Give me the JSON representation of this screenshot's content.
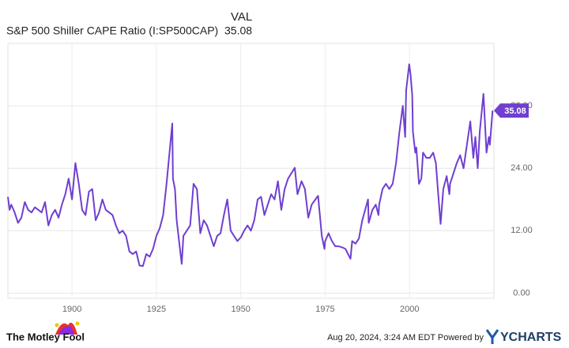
{
  "chart_data": {
    "type": "line",
    "value_header": "VAL",
    "credit": "The Motley Fool",
    "timestamp": "Aug 20, 2024, 3:24 AM EDT Powered by",
    "brand": "YCHARTS",
    "x": [
      1881,
      1881.5,
      1882,
      1883,
      1884,
      1885,
      1886,
      1887,
      1888,
      1889,
      1890,
      1891,
      1892,
      1893,
      1894,
      1895,
      1896,
      1897,
      1898,
      1899,
      1900,
      1901,
      1902,
      1903,
      1904,
      1905,
      1906,
      1907,
      1908,
      1909,
      1910,
      1911,
      1912,
      1913,
      1914,
      1915,
      1916,
      1917,
      1918,
      1919,
      1920,
      1921,
      1922,
      1923,
      1924,
      1925,
      1926,
      1927,
      1928,
      1929.7,
      1929.9,
      1930.5,
      1931,
      1932.5,
      1933,
      1934,
      1935,
      1936,
      1937,
      1938,
      1939,
      1940,
      1941,
      1942,
      1943,
      1944,
      1945,
      1946,
      1947,
      1948,
      1949,
      1950,
      1951,
      1952,
      1953,
      1954,
      1955,
      1956,
      1957,
      1958,
      1959,
      1960,
      1961,
      1962,
      1963,
      1964,
      1966,
      1966.8,
      1968,
      1969,
      1970,
      1971,
      1972.9,
      1974,
      1974.8,
      1975,
      1976,
      1977,
      1978,
      1979,
      1980,
      1981,
      1982.5,
      1983,
      1984,
      1985,
      1986,
      1987.7,
      1987.9,
      1989,
      1990,
      1990.8,
      1991,
      1992,
      1993,
      1994,
      1995,
      1996,
      1997,
      1998,
      1998.7,
      1999,
      1999.9,
      2000.3,
      2000.8,
      2001,
      2001.7,
      2002,
      2002.8,
      2003.5,
      2004,
      2005,
      2006,
      2007,
      2007.8,
      2008.5,
      2009.2,
      2010,
      2011,
      2011.8,
      2012,
      2013,
      2014,
      2015,
      2016,
      2017,
      2018,
      2018.9,
      2019.5,
      2020.2,
      2020.8,
      2021.9,
      2022.8,
      2023.5,
      2023.8,
      2024.6
    ],
    "series": [
      {
        "name": "S&P 500 Shiller CAPE Ratio (I:SP500CAP)",
        "color": "#6f3fd0",
        "values": [
          18.5,
          16,
          17,
          15.5,
          13.5,
          14.5,
          17.5,
          16,
          15.5,
          16.5,
          16,
          15.5,
          17.5,
          13,
          15,
          16,
          14.5,
          17,
          19,
          22,
          18,
          25,
          21,
          16,
          15,
          19.5,
          20,
          14,
          15.5,
          18,
          16,
          15.5,
          15,
          13,
          11.5,
          12,
          11,
          8,
          7.5,
          8,
          5.3,
          5.2,
          7.5,
          7,
          8.5,
          11,
          12.5,
          15,
          21,
          32.6,
          22,
          20,
          14,
          5.6,
          11,
          12,
          13,
          21,
          20,
          11.5,
          14,
          13,
          11,
          9,
          11,
          11.5,
          15,
          18,
          12,
          11,
          10,
          10.7,
          12,
          13,
          12,
          14,
          18,
          18.5,
          15,
          17,
          19,
          18,
          21.5,
          16,
          20,
          22,
          24.1,
          19,
          21.5,
          20,
          14.5,
          17,
          18.7,
          11,
          8.5,
          10,
          11.5,
          10,
          9,
          9,
          8.8,
          8.5,
          6.6,
          10,
          9.5,
          10.5,
          14,
          18,
          13.5,
          16,
          17,
          15,
          17,
          20,
          21,
          20,
          21,
          25,
          31,
          36,
          30,
          39,
          44,
          42,
          38,
          31,
          27,
          28,
          21,
          22,
          27,
          26,
          26,
          27,
          25,
          19,
          13.3,
          20,
          22.5,
          19,
          21,
          23,
          25,
          26.5,
          24,
          28.5,
          33,
          26,
          30,
          24,
          31,
          38.3,
          27,
          30,
          28.5,
          35.08
        ]
      }
    ],
    "xlim": [
      1881,
      2025
    ],
    "xticks": [
      1900,
      1925,
      1950,
      1975,
      2000
    ],
    "ylim": [
      -1,
      48
    ],
    "yticks": [
      {
        "value": 0,
        "label": "0.00"
      },
      {
        "value": 12,
        "label": "12.00"
      },
      {
        "value": 24,
        "label": "24.00"
      },
      {
        "value": 36,
        "label": "36.00"
      }
    ],
    "grid": true
  }
}
